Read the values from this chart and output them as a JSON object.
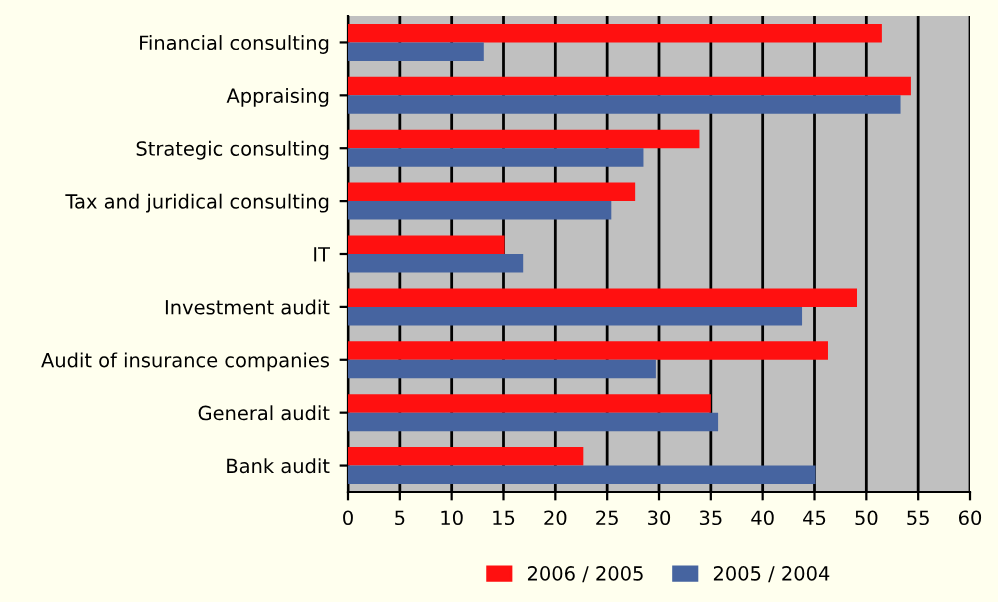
{
  "chart_data": {
    "type": "bar",
    "orientation": "horizontal",
    "categories": [
      "Financial consulting",
      "Appraising",
      "Strategic consulting",
      "Tax and juridical consulting",
      "IT",
      "Investment audit",
      "Audit of insurance companies",
      "General audit",
      "Bank audit"
    ],
    "series": [
      {
        "name": "2006 / 2005",
        "color": "#ff1010",
        "values": [
          51.5,
          54.3,
          33.9,
          27.7,
          15.1,
          49.1,
          46.3,
          35.0,
          22.7
        ]
      },
      {
        "name": "2005 / 2004",
        "color": "#4664a0",
        "values": [
          13.1,
          53.3,
          28.5,
          25.4,
          16.9,
          43.8,
          29.7,
          35.7,
          45.1
        ]
      }
    ],
    "xlim": [
      0,
      60
    ],
    "xticks": [
      0,
      5,
      10,
      15,
      20,
      25,
      30,
      35,
      40,
      45,
      50,
      55,
      60
    ],
    "grid": "x",
    "legend": "bottom"
  }
}
